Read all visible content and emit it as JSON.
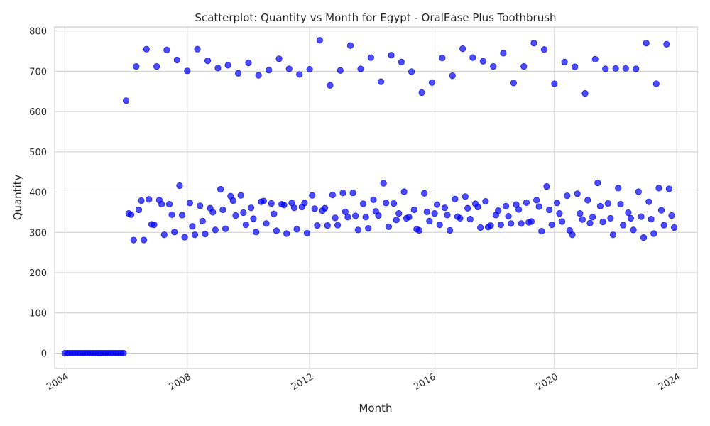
{
  "chart_data": {
    "type": "scatter",
    "title": "Scatterplot: Quantity vs Month for Egypt - OralEase Plus Toothbrush",
    "xlabel": "Month",
    "ylabel": "Quantity",
    "x_axis_type": "date",
    "xlim": [
      "2003-09-01",
      "2024-09-01"
    ],
    "ylim": [
      -38,
      810
    ],
    "x_ticks": [
      "2004",
      "2008",
      "2012",
      "2016",
      "2020",
      "2024"
    ],
    "y_ticks": [
      "0",
      "100",
      "200",
      "300",
      "400",
      "500",
      "600",
      "700",
      "800"
    ],
    "grid": true,
    "legend": "none",
    "color": "#0000ff",
    "series": [
      {
        "x": [
          "2004-01",
          "2004-02",
          "2004-03",
          "2004-04",
          "2004-05",
          "2004-06",
          "2004-07",
          "2004-08",
          "2004-09",
          "2004-10",
          "2004-11",
          "2004-12",
          "2005-01",
          "2005-02",
          "2005-03",
          "2005-04",
          "2005-05",
          "2005-06",
          "2005-07",
          "2005-08",
          "2005-09",
          "2005-10",
          "2005-11",
          "2005-12",
          "2006-01",
          "2006-02",
          "2006-03",
          "2006-04",
          "2006-05",
          "2006-06",
          "2006-07",
          "2006-08",
          "2006-09",
          "2006-10",
          "2006-11",
          "2006-12",
          "2007-01",
          "2007-02",
          "2007-03",
          "2007-04",
          "2007-05",
          "2007-06",
          "2007-07",
          "2007-08",
          "2007-09",
          "2007-10",
          "2007-11",
          "2007-12",
          "2008-01",
          "2008-02",
          "2008-03",
          "2008-04",
          "2008-05",
          "2008-06",
          "2008-07",
          "2008-08",
          "2008-09",
          "2008-10",
          "2008-11",
          "2008-12",
          "2009-01",
          "2009-02",
          "2009-03",
          "2009-04",
          "2009-05",
          "2009-06",
          "2009-07",
          "2009-08",
          "2009-09",
          "2009-10",
          "2009-11",
          "2009-12",
          "2010-01",
          "2010-02",
          "2010-03",
          "2010-04",
          "2010-05",
          "2010-06",
          "2010-07",
          "2010-08",
          "2010-09",
          "2010-10",
          "2010-11",
          "2010-12",
          "2011-01",
          "2011-02",
          "2011-03",
          "2011-04",
          "2011-05",
          "2011-06",
          "2011-07",
          "2011-08",
          "2011-09",
          "2011-10",
          "2011-11",
          "2011-12",
          "2012-01",
          "2012-02",
          "2012-03",
          "2012-04",
          "2012-05",
          "2012-06",
          "2012-07",
          "2012-08",
          "2012-09",
          "2012-10",
          "2012-11",
          "2012-12",
          "2013-01",
          "2013-02",
          "2013-03",
          "2013-04",
          "2013-05",
          "2013-06",
          "2013-07",
          "2013-08",
          "2013-09",
          "2013-10",
          "2013-11",
          "2013-12",
          "2014-01",
          "2014-02",
          "2014-03",
          "2014-04",
          "2014-05",
          "2014-06",
          "2014-07",
          "2014-08",
          "2014-09",
          "2014-10",
          "2014-11",
          "2014-12",
          "2015-01",
          "2015-02",
          "2015-03",
          "2015-04",
          "2015-05",
          "2015-06",
          "2015-07",
          "2015-08",
          "2015-09",
          "2015-10",
          "2015-11",
          "2015-12",
          "2016-01",
          "2016-02",
          "2016-03",
          "2016-04",
          "2016-05",
          "2016-06",
          "2016-07",
          "2016-08",
          "2016-09",
          "2016-10",
          "2016-11",
          "2016-12",
          "2017-01",
          "2017-02",
          "2017-03",
          "2017-04",
          "2017-05",
          "2017-06",
          "2017-07",
          "2017-08",
          "2017-09",
          "2017-10",
          "2017-11",
          "2017-12",
          "2018-01",
          "2018-02",
          "2018-03",
          "2018-04",
          "2018-05",
          "2018-06",
          "2018-07",
          "2018-08",
          "2018-09",
          "2018-10",
          "2018-11",
          "2018-12",
          "2019-01",
          "2019-02",
          "2019-03",
          "2019-04",
          "2019-05",
          "2019-06",
          "2019-07",
          "2019-08",
          "2019-09",
          "2019-10",
          "2019-11",
          "2019-12",
          "2020-01",
          "2020-02",
          "2020-03",
          "2020-04",
          "2020-05",
          "2020-06",
          "2020-07",
          "2020-08",
          "2020-09",
          "2020-10",
          "2020-11",
          "2020-12",
          "2021-01",
          "2021-02",
          "2021-03",
          "2021-04",
          "2021-05",
          "2021-06",
          "2021-07",
          "2021-08",
          "2021-09",
          "2021-10",
          "2021-11",
          "2021-12",
          "2022-01",
          "2022-02",
          "2022-03",
          "2022-04",
          "2022-05",
          "2022-06",
          "2022-07",
          "2022-08",
          "2022-09",
          "2022-10",
          "2022-11",
          "2022-12",
          "2023-01",
          "2023-02",
          "2023-03",
          "2023-04",
          "2023-05",
          "2023-06",
          "2023-07",
          "2023-08",
          "2023-09",
          "2023-10",
          "2023-11",
          "2023-12"
        ],
        "y": [
          0,
          0,
          0,
          0,
          0,
          0,
          0,
          0,
          0,
          0,
          0,
          0,
          0,
          0,
          0,
          0,
          0,
          0,
          0,
          0,
          0,
          0,
          0,
          0,
          627,
          347,
          344,
          281,
          712,
          356,
          379,
          281,
          755,
          382,
          320,
          319,
          712,
          380,
          370,
          294,
          753,
          370,
          344,
          301,
          728,
          416,
          343,
          288,
          701,
          373,
          315,
          294,
          755,
          366,
          328,
          296,
          726,
          360,
          350,
          306,
          708,
          407,
          356,
          309,
          715,
          390,
          379,
          342,
          695,
          392,
          349,
          319,
          721,
          361,
          334,
          301,
          690,
          376,
          378,
          322,
          703,
          372,
          346,
          304,
          731,
          370,
          368,
          297,
          706,
          373,
          361,
          308,
          692,
          363,
          373,
          298,
          705,
          392,
          359,
          317,
          777,
          354,
          360,
          317,
          665,
          393,
          336,
          318,
          702,
          398,
          351,
          338,
          764,
          398,
          341,
          306,
          706,
          371,
          338,
          310,
          734,
          381,
          352,
          342,
          674,
          422,
          373,
          314,
          740,
          372,
          331,
          347,
          723,
          401,
          335,
          338,
          699,
          356,
          308,
          305,
          647,
          397,
          351,
          328,
          672,
          347,
          369,
          319,
          733,
          361,
          343,
          305,
          689,
          383,
          339,
          335,
          756,
          389,
          360,
          333,
          734,
          371,
          363,
          312,
          725,
          377,
          313,
          317,
          712,
          343,
          354,
          319,
          745,
          365,
          340,
          322,
          671,
          369,
          357,
          322,
          712,
          374,
          325,
          327,
          770,
          380,
          364,
          303,
          754,
          414,
          356,
          319,
          669,
          373,
          347,
          327,
          723,
          391,
          305,
          294,
          711,
          396,
          347,
          332,
          645,
          380,
          323,
          338,
          730,
          423,
          365,
          326,
          706,
          372,
          335,
          294,
          707,
          410,
          370,
          318,
          707,
          349,
          335,
          306,
          706,
          401,
          339,
          287,
          770,
          376,
          333,
          297,
          669,
          410,
          355,
          318,
          767,
          408,
          342,
          312
        ]
      }
    ]
  }
}
